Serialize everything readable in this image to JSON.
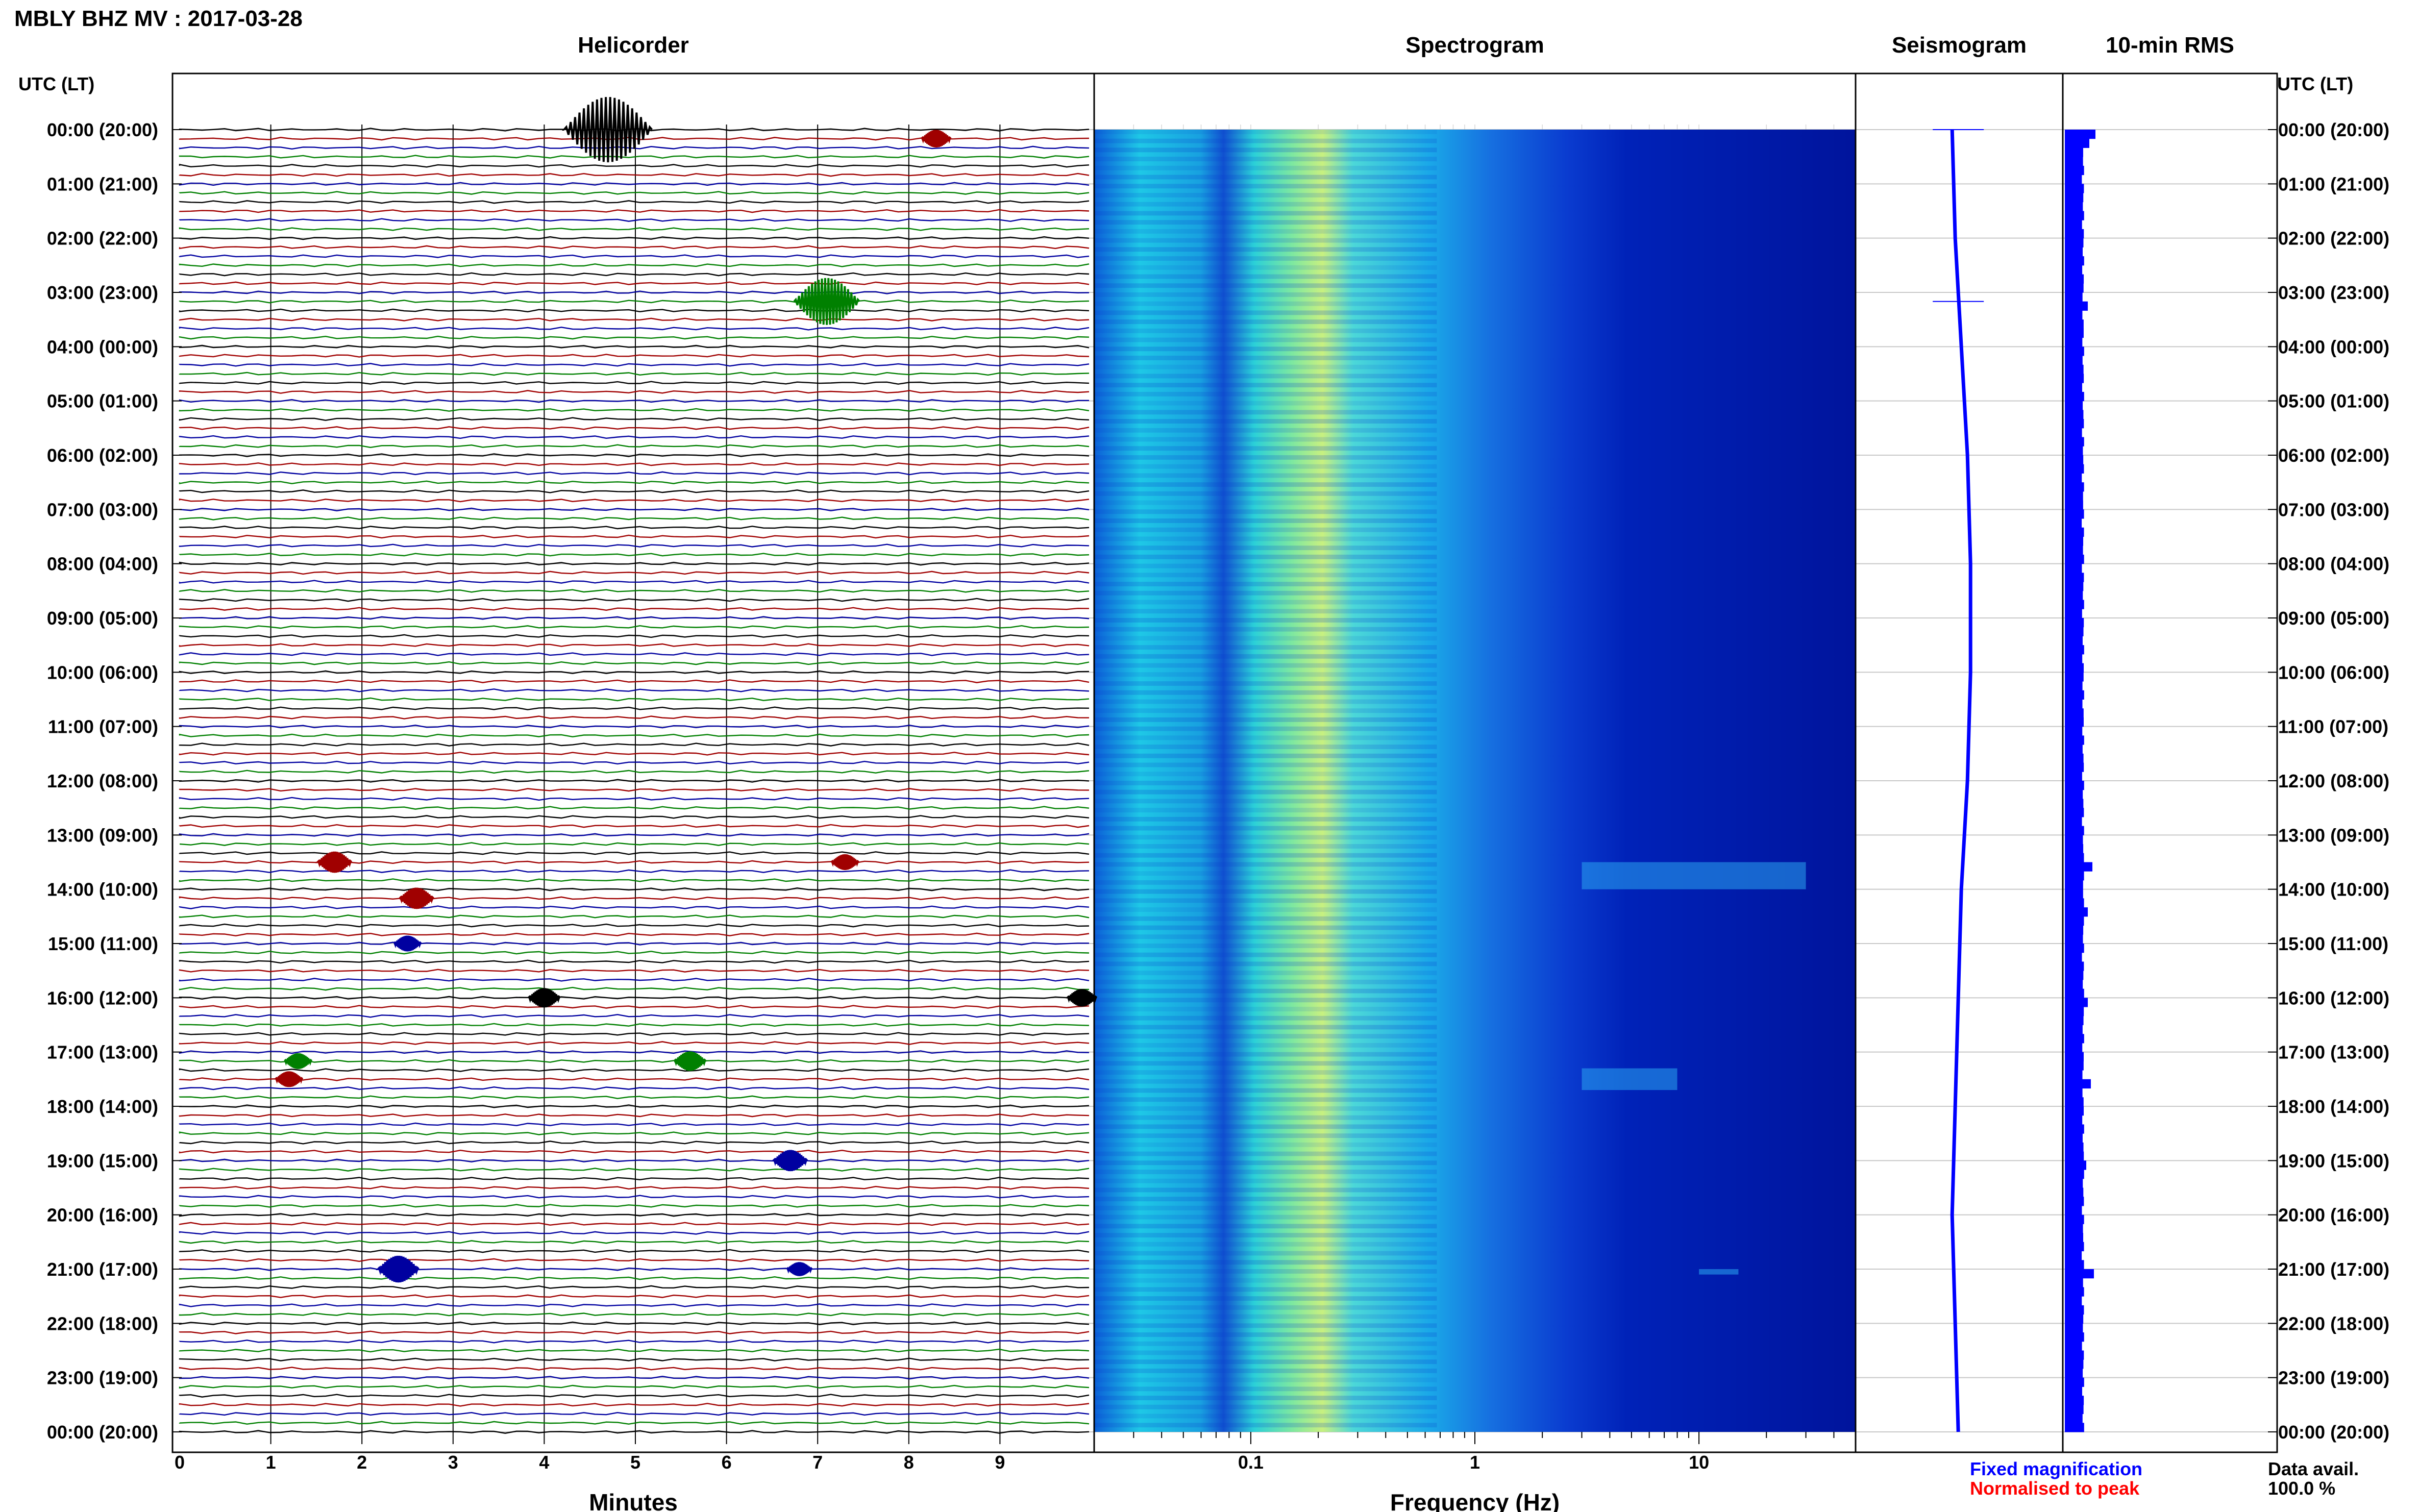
{
  "page_title": "MBLY BHZ MV : 2017-03-28",
  "panels": {
    "helicorder_title": "Helicorder",
    "spectrogram_title": "Spectrogram",
    "seismogram_title": "Seismogram",
    "rms_title": "10-min RMS"
  },
  "left_axis_title": "UTC (LT)",
  "right_axis_title": "UTC (LT)",
  "legend": {
    "fixed": "Fixed magnification",
    "normalised": "Normalised to peak",
    "fixed_color": "#0000ff",
    "normalised_color": "#ff0000"
  },
  "data_availability": {
    "label": "Data avail.",
    "value": "100.0 %"
  },
  "colors": {
    "trace_cycle": [
      "#000000",
      "#a00000",
      "#0000a0",
      "#008000"
    ],
    "spectrogram_low": "#000080",
    "spectrogram_mid": "#00c8ff",
    "spectrogram_high": "#ffff00",
    "seismogram": "#0000ff",
    "rms_bar": "#0000ff"
  },
  "chart_data": [
    {
      "type": "line",
      "name": "helicorder",
      "title": "Helicorder",
      "xlabel": "Minutes",
      "xlim": [
        0,
        10
      ],
      "x_ticks": [
        "0",
        "1",
        "2",
        "3",
        "4",
        "5",
        "6",
        "7",
        "8",
        "9"
      ],
      "row_labels": [
        "00:00 (20:00)",
        "01:00 (21:00)",
        "02:00 (22:00)",
        "03:00 (23:00)",
        "04:00 (00:00)",
        "05:00 (01:00)",
        "06:00 (02:00)",
        "07:00 (03:00)",
        "08:00 (04:00)",
        "09:00 (05:00)",
        "10:00 (06:00)",
        "11:00 (07:00)",
        "12:00 (08:00)",
        "13:00 (09:00)",
        "14:00 (10:00)",
        "15:00 (11:00)",
        "16:00 (12:00)",
        "17:00 (13:00)",
        "18:00 (14:00)",
        "19:00 (15:00)",
        "20:00 (16:00)",
        "21:00 (17:00)",
        "22:00 (18:00)",
        "23:00 (19:00)",
        "00:00 (20:00)"
      ],
      "traces_per_hour": 6,
      "events": [
        {
          "hour": 0.0,
          "minute": 4.7,
          "amplitude": 3.0
        },
        {
          "hour": 0.1667,
          "minute": 8.3,
          "amplitude": 0.4
        },
        {
          "hour": 3.1667,
          "minute": 7.1,
          "amplitude": 2.0
        },
        {
          "hour": 13.5,
          "minute": 1.7,
          "amplitude": 0.6
        },
        {
          "hour": 13.5,
          "minute": 7.3,
          "amplitude": 0.3
        },
        {
          "hour": 14.1667,
          "minute": 2.6,
          "amplitude": 0.6
        },
        {
          "hour": 15.0,
          "minute": 2.5,
          "amplitude": 0.3
        },
        {
          "hour": 16.0,
          "minute": 4.0,
          "amplitude": 0.5
        },
        {
          "hour": 16.0,
          "minute": 9.9,
          "amplitude": 0.4
        },
        {
          "hour": 17.1667,
          "minute": 1.3,
          "amplitude": 0.3
        },
        {
          "hour": 17.1667,
          "minute": 5.6,
          "amplitude": 0.5
        },
        {
          "hour": 17.5,
          "minute": 1.2,
          "amplitude": 0.3
        },
        {
          "hour": 19.0,
          "minute": 6.7,
          "amplitude": 0.6
        },
        {
          "hour": 21.0,
          "minute": 2.4,
          "amplitude": 0.9
        },
        {
          "hour": 21.0,
          "minute": 6.8,
          "amplitude": 0.2
        }
      ]
    },
    {
      "type": "heatmap",
      "name": "spectrogram",
      "title": "Spectrogram",
      "xlabel": "Frequency (Hz)",
      "x_scale": "log",
      "xlim": [
        0.02,
        50
      ],
      "x_ticks": [
        0.1,
        1,
        10
      ],
      "x_tick_labels": [
        "0.1",
        "1",
        "10"
      ],
      "ylim_hours": [
        0,
        24
      ],
      "peak_band_hz": [
        0.15,
        0.3
      ],
      "energy_bursts": [
        {
          "hour_from": 13.5,
          "hour_to": 14.0,
          "f_low": 3,
          "f_high": 30
        },
        {
          "hour_from": 17.3,
          "hour_to": 17.7,
          "f_low": 3,
          "f_high": 8
        },
        {
          "hour_from": 21.0,
          "hour_to": 21.1,
          "f_low": 10,
          "f_high": 15
        }
      ]
    },
    {
      "type": "line",
      "name": "seismogram",
      "title": "Seismogram",
      "ylim_hours": [
        0,
        24
      ],
      "hours": [
        0,
        2,
        4,
        6,
        8,
        10,
        12,
        14,
        16,
        18,
        20,
        22,
        24
      ],
      "offsets": [
        -0.1,
        -0.05,
        0.05,
        0.15,
        0.2,
        0.2,
        0.15,
        0.05,
        0.0,
        -0.05,
        -0.1,
        -0.05,
        0.0
      ]
    },
    {
      "type": "bar",
      "name": "rms",
      "title": "10-min RMS",
      "ylim_hours": [
        0,
        24
      ],
      "base_level": 0.55,
      "spikes": [
        {
          "hour": 0.0,
          "value": 1.0
        },
        {
          "hour": 0.2,
          "value": 0.8
        },
        {
          "hour": 3.2,
          "value": 0.75
        },
        {
          "hour": 13.5,
          "value": 0.9
        },
        {
          "hour": 14.3,
          "value": 0.75
        },
        {
          "hour": 16.0,
          "value": 0.75
        },
        {
          "hour": 17.5,
          "value": 0.85
        },
        {
          "hour": 19.0,
          "value": 0.7
        },
        {
          "hour": 21.0,
          "value": 0.95
        }
      ]
    }
  ]
}
